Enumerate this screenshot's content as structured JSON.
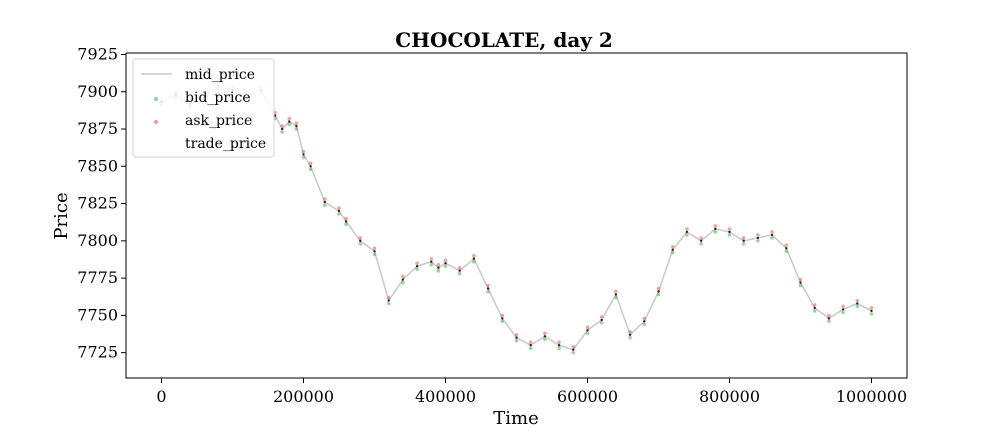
{
  "chart_data": {
    "type": "line",
    "title": "CHOCOLATE, day 2",
    "xlabel": "Time",
    "ylabel": "Price",
    "xlim": [
      -50000,
      1050000
    ],
    "ylim": [
      7708,
      7926
    ],
    "x_ticks": [
      0,
      200000,
      400000,
      600000,
      800000,
      1000000
    ],
    "x_tick_labels": [
      "0",
      "200000",
      "400000",
      "600000",
      "800000",
      "1000000"
    ],
    "y_ticks": [
      7725,
      7750,
      7775,
      7800,
      7825,
      7850,
      7875,
      7900,
      7925
    ],
    "y_tick_labels": [
      "7725",
      "7750",
      "7775",
      "7800",
      "7825",
      "7850",
      "7875",
      "7900",
      "7925"
    ],
    "legend_position": "upper-left",
    "grid": false,
    "x": [
      0,
      20000,
      40000,
      60000,
      80000,
      100000,
      120000,
      140000,
      160000,
      170000,
      180000,
      190000,
      200000,
      210000,
      230000,
      250000,
      260000,
      280000,
      300000,
      320000,
      340000,
      360000,
      380000,
      390000,
      400000,
      420000,
      440000,
      460000,
      480000,
      500000,
      520000,
      540000,
      560000,
      580000,
      600000,
      620000,
      640000,
      660000,
      680000,
      700000,
      720000,
      740000,
      760000,
      780000,
      800000,
      820000,
      840000,
      860000,
      880000,
      900000,
      920000,
      940000,
      960000,
      980000,
      1000000
    ],
    "series": [
      {
        "name": "mid_price",
        "color": "#c8c8c8",
        "mark": "line",
        "values": [
          7893,
          7898,
          7892,
          7896,
          7904,
          7901,
          7896,
          7901,
          7884,
          7875,
          7880,
          7877,
          7858,
          7850,
          7826,
          7820,
          7813,
          7800,
          7793,
          7760,
          7774,
          7783,
          7786,
          7782,
          7785,
          7780,
          7788,
          7768,
          7748,
          7735,
          7730,
          7736,
          7730,
          7727,
          7740,
          7747,
          7764,
          7737,
          7746,
          7766,
          7794,
          7806,
          7800,
          7808,
          7806,
          7800,
          7802,
          7804,
          7795,
          7772,
          7755,
          7748,
          7754,
          7758,
          7753
        ]
      },
      {
        "name": "bid_price",
        "color": "#4daf4a",
        "mark": "points",
        "values": [
          7891,
          7896,
          7890,
          7894,
          7902,
          7899,
          7894,
          7899,
          7882,
          7873,
          7878,
          7875,
          7856,
          7848,
          7824,
          7818,
          7811,
          7798,
          7791,
          7758,
          7772,
          7781,
          7784,
          7780,
          7783,
          7778,
          7786,
          7766,
          7746,
          7733,
          7728,
          7734,
          7728,
          7725,
          7738,
          7745,
          7762,
          7735,
          7744,
          7764,
          7792,
          7804,
          7798,
          7806,
          7804,
          7798,
          7800,
          7802,
          7793,
          7770,
          7753,
          7746,
          7752,
          7756,
          7751
        ]
      },
      {
        "name": "ask_price",
        "color": "#e05a5a",
        "mark": "points",
        "values": [
          7895,
          7900,
          7894,
          7898,
          7906,
          7903,
          7898,
          7903,
          7886,
          7877,
          7882,
          7879,
          7860,
          7852,
          7828,
          7822,
          7815,
          7802,
          7795,
          7762,
          7776,
          7785,
          7788,
          7784,
          7787,
          7782,
          7790,
          7770,
          7750,
          7737,
          7732,
          7738,
          7732,
          7729,
          7742,
          7749,
          7766,
          7739,
          7748,
          7768,
          7796,
          7808,
          7802,
          7810,
          7808,
          7802,
          7804,
          7806,
          7797,
          7774,
          7757,
          7750,
          7756,
          7760,
          7755
        ]
      },
      {
        "name": "trade_price",
        "color": "#111111",
        "mark": "dots",
        "values": [
          7893,
          7898,
          7892,
          7896,
          7904,
          7901,
          7896,
          7901,
          7884,
          7875,
          7880,
          7877,
          7858,
          7850,
          7826,
          7820,
          7813,
          7800,
          7793,
          7760,
          7774,
          7783,
          7786,
          7782,
          7785,
          7780,
          7788,
          7768,
          7748,
          7735,
          7730,
          7736,
          7730,
          7727,
          7740,
          7747,
          7764,
          7737,
          7746,
          7766,
          7794,
          7806,
          7800,
          7808,
          7806,
          7800,
          7802,
          7804,
          7795,
          7772,
          7755,
          7748,
          7754,
          7758,
          7753
        ]
      }
    ]
  }
}
